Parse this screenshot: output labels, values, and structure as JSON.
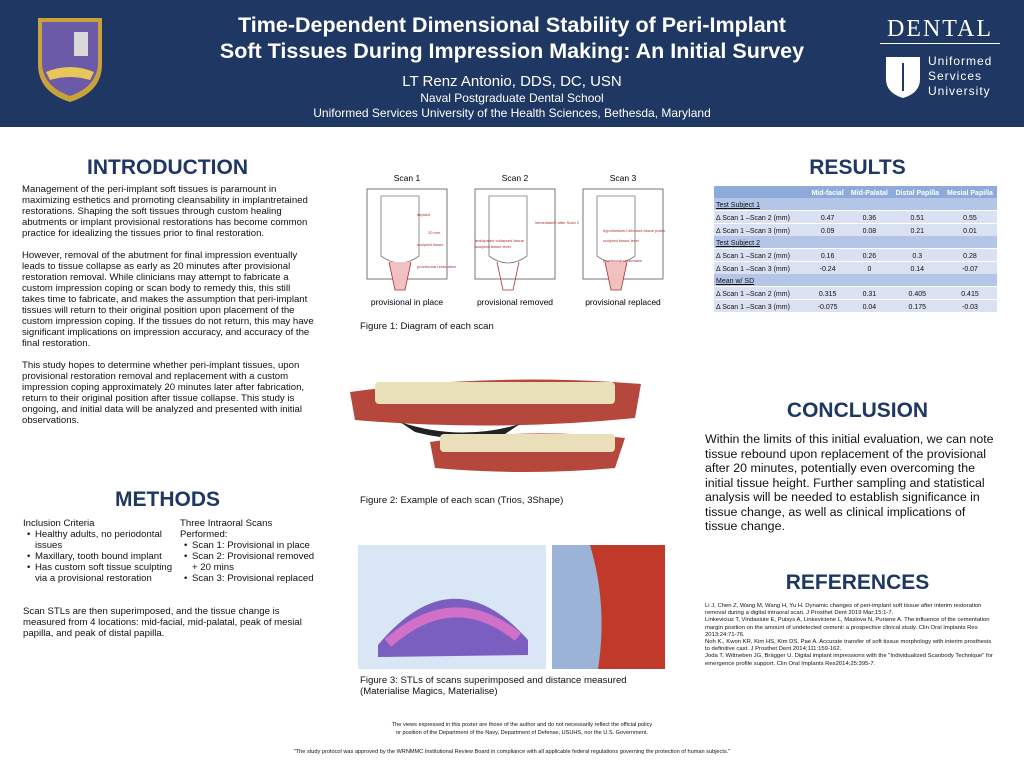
{
  "header": {
    "title": [
      "Time-Dependent Dimensional Stability of Peri-Implant",
      "Soft Tissues During Impression Making: An Initial Survey"
    ],
    "author": "LT Renz Antonio, DDS, DC, USN",
    "school": "Naval Postgraduate Dental School",
    "university": "Uniformed Services University of the Health Sciences, Bethesda, Maryland",
    "logo": {
      "dental": "DENTAL",
      "lines": [
        "Uniformed",
        "Services",
        "University"
      ]
    }
  },
  "introduction": {
    "heading": "INTRODUCTION",
    "paragraphs": [
      "Management of the peri-implant soft tissues is paramount in maximizing esthetics and promoting cleansability in implantretained restorations. Shaping the soft tissues through custom healing abutments or implant provisional restorations has become common practice for idealizing the tissues prior to final restoration.",
      "However, removal of the abutment for final impression eventually leads to tissue collapse as early as 20 minutes after provisional restoration removal. While clinicians may attempt to fabricate a custom impression coping or scan body to remedy this, this still takes time to fabricate, and makes the assumption that peri-implant tissues will return to their original position upon placement of the custom impression coping.  If the tissues do not return, this may have significant implications on impression accuracy, and accuracy of the final restoration.",
      "This study hopes to determine whether peri-implant tissues, upon provisional restoration removal and replacement with a custom impression coping approximately 20 minutes later after fabrication, return to their original position after tissue collapse. This study is ongoing, and initial data will be analyzed and presented with initial observations."
    ]
  },
  "methods": {
    "heading": "METHODS",
    "inclusion": {
      "title": "Inclusion Criteria",
      "items": [
        "Healthy adults, no periodontal issues",
        "Maxillary, tooth bound implant",
        "Has custom soft tissue sculpting via a provisional restoration"
      ]
    },
    "scans": {
      "title": "Three Intraoral Scans Performed:",
      "items": [
        "Scan 1: Provisional in place",
        "Scan 2: Provisional removed + 20 mins",
        "Scan 3: Provisional replaced"
      ]
    },
    "text": "Scan STLs are then superimposed, and the tissue change is measured from 4 locations: mid-facial, mid-palatal, peak of mesial papilla, and peak of distal papilla."
  },
  "figure1": {
    "scans": [
      "Scan 1",
      "Scan 2",
      "Scan 3"
    ],
    "captions": [
      "provisional in place",
      "provisional removed",
      "provisional replaced"
    ],
    "labels": [
      "implant",
      "sculpted tissue",
      "provisional restoration",
      "20 min.",
      "immediately after Scan 2",
      "anticipated collapsed tissue",
      "sculpted tissue level",
      "hypothesized rebound tissue position",
      "sculpted tissue level",
      "provisional restoration"
    ],
    "caption": "Figure 1: Diagram of each scan"
  },
  "figure2": {
    "caption": "Figure 2: Example of each scan (Trios, 3Shape)"
  },
  "figure3": {
    "caption": [
      "Figure 3: STLs of scans superimposed and distance measured",
      "(Materialise Magics, Materialise)"
    ]
  },
  "results": {
    "heading": "RESULTS",
    "columns": [
      "Mid-facial",
      "Mid-Palatal",
      "Distal Papilla",
      "Mesial Papilla"
    ],
    "groups": [
      {
        "name": "Test Subject 1",
        "rows": [
          {
            "label": "Δ Scan 1 –Scan 2 (mm)",
            "values": [
              "0.47",
              "0.36",
              "0.51",
              "0.55"
            ]
          },
          {
            "label": "Δ Scan 1 –Scan 3 (mm)",
            "values": [
              "0.09",
              "0.08",
              "0.21",
              "0.01"
            ]
          }
        ]
      },
      {
        "name": "Test Subject 2",
        "rows": [
          {
            "label": "Δ Scan 1 –Scan 2 (mm)",
            "values": [
              "0.16",
              "0.26",
              "0.3",
              "0.28"
            ]
          },
          {
            "label": "Δ Scan 1 –Scan 3 (mm)",
            "values": [
              "-0.24",
              "0",
              "0.14",
              "-0.07"
            ]
          }
        ]
      },
      {
        "name": "Mean w/ SD",
        "rows": [
          {
            "label": "Δ Scan 1 –Scan 2 (mm)",
            "values": [
              "0.315",
              "0.31",
              "0.405",
              "0.415"
            ]
          },
          {
            "label": "Δ Scan 1 –Scan 3 (mm)",
            "values": [
              "-0.075",
              "0.04",
              "0.175",
              "-0.03"
            ]
          }
        ]
      }
    ]
  },
  "conclusion": {
    "heading": "CONCLUSION",
    "text": "Within the limits of this initial evaluation, we can note tissue rebound upon replacement of the provisional after 20 minutes, potentially even overcoming the initial tissue height. Further sampling and statistical analysis will be needed to establish significance in tissue change, as well as clinical implications of tissue change."
  },
  "references": {
    "heading": "REFERENCES",
    "items": [
      "Li J, Chen Z, Wang M, Wang H, Yu H. Dynamic changes of peri-implant soft tissue after interim restoration removal during a digital intraoral scan. J Prosthet Dent 2019 Mar;15:1-7.",
      "Linkevicius T, Vindasiute E, Puisys A, Linkeviciene L, Maslova N, Puriene A. The influence of the cementation margin position on the amount of undetected cement: a prospective clinical study. Clin Oral Implants Res 2013;24:71-76.",
      "Noh K., Kwon KR, Kim HS, Kim DS, Pae A. Accurate transfer of soft tissue morphology with interim prosthesis to definitive cast. J Prosthet Dent 2014;111:159-162.",
      "Joda T, Wittneben JG, Brägger U. Digital implant impressions with the \"Individualized Scanbody Technique\" for emergence profile support. Clin Oral Implants Res2014;25:395-7."
    ]
  },
  "footer": {
    "disclaimer": [
      "The views expressed in this poster are those of the author and do not necessarily reflect the official policy",
      "or position of the Department of the Navy, Department of Defense, USUHS, nor the U.S. Government."
    ],
    "note": "\"The study protocol was approved by the WRNMMC Institutional Review Board in compliance with all applicable federal regulations governing the protection of human subjects.\""
  }
}
